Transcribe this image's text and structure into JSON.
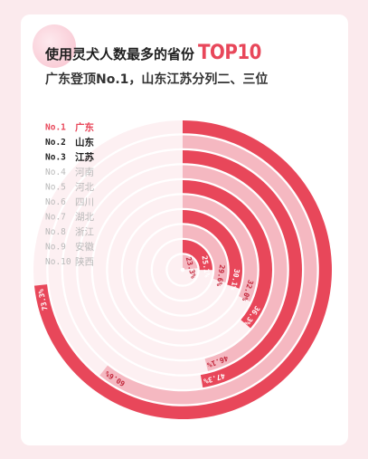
{
  "header": {
    "title_main": "使用灵犬人数最多的省份",
    "title_highlight": "TOP10",
    "subtitle": "广东登顶No.1，山东江苏分列二、三位"
  },
  "colors": {
    "background": "#fbeaed",
    "card": "#ffffff",
    "bar_dark": "#e8475a",
    "bar_light": "#f5b8c1",
    "track": "#fdf0f2",
    "rank_highlight": "#e8475a",
    "rank_dark": "#222222",
    "rank_muted": "#b9b9b9"
  },
  "chart_data": {
    "type": "radial-bar",
    "title": "使用灵犬人数最多的省份TOP10",
    "categories": [
      "广东",
      "山东",
      "江苏",
      "河南",
      "河北",
      "四川",
      "湖北",
      "浙江",
      "安徽",
      "陕西"
    ],
    "ranks": [
      "No.1",
      "No.2",
      "No.3",
      "No.4",
      "No.5",
      "No.6",
      "No.7",
      "No.8",
      "No.9",
      "No.10"
    ],
    "values": [
      73.3,
      60.6,
      47.3,
      46.1,
      36.3,
      32.0,
      30.1,
      29.6,
      25.1,
      23.3
    ],
    "labels": [
      "73.3%",
      "60.6%",
      "47.3%",
      "46.1%",
      "36.3%",
      "32.0%",
      "30.1%",
      "29.6%",
      "25.1%",
      "23.3%"
    ],
    "unit": "%"
  }
}
